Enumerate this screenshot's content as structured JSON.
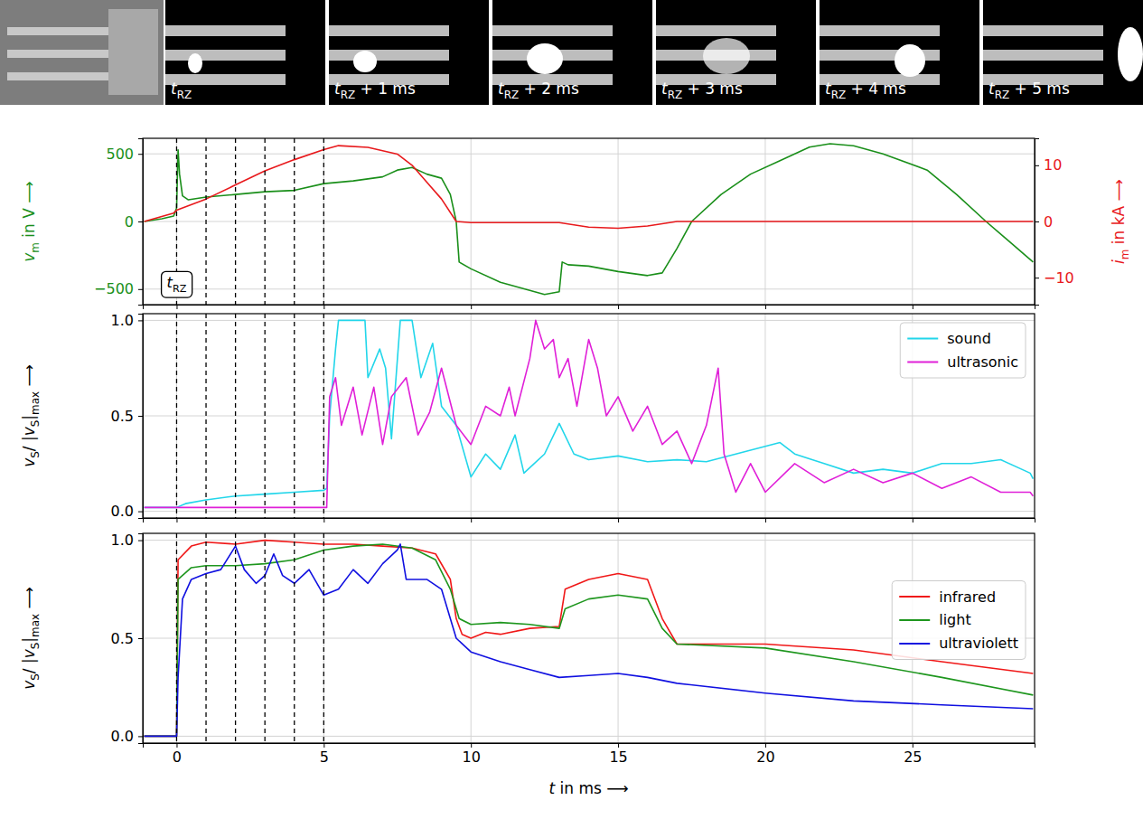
{
  "frames": {
    "labels": [
      [
        {
          "text": "t",
          "style": "italic"
        },
        {
          "text": "RZ",
          "style": "sub"
        }
      ],
      [
        {
          "text": "t",
          "style": "italic"
        },
        {
          "text": "RZ",
          "style": "sub"
        },
        {
          "text": " + 1 ms",
          "style": "normal"
        }
      ],
      [
        {
          "text": "t",
          "style": "italic"
        },
        {
          "text": "RZ",
          "style": "sub"
        },
        {
          "text": " + 2 ms",
          "style": "normal"
        }
      ],
      [
        {
          "text": "t",
          "style": "italic"
        },
        {
          "text": "RZ",
          "style": "sub"
        },
        {
          "text": " + 3 ms",
          "style": "normal"
        }
      ],
      [
        {
          "text": "t",
          "style": "italic"
        },
        {
          "text": "RZ",
          "style": "sub"
        },
        {
          "text": " + 4 ms",
          "style": "normal"
        }
      ],
      [
        {
          "text": "t",
          "style": "italic"
        },
        {
          "text": "RZ",
          "style": "sub"
        },
        {
          "text": " + 5 ms",
          "style": "normal"
        }
      ]
    ]
  },
  "chart_data": [
    {
      "type": "line",
      "xlim": [
        -1.15,
        29.15
      ],
      "xticks": [
        0,
        5,
        10,
        15,
        20,
        25
      ],
      "ylim": [
        -615,
        615
      ],
      "yticks": [
        {
          "value": -500,
          "label": "−500"
        },
        0,
        500
      ],
      "y2lim": [
        -14.8,
        14.8
      ],
      "y2ticks": [
        {
          "value": -10,
          "label": "−10"
        },
        0,
        10
      ],
      "ylabel": [
        {
          "text": "v",
          "style": "italic"
        },
        {
          "text": "m",
          "style": "sub"
        },
        {
          "text": " in V ⟶",
          "style": "normal"
        }
      ],
      "y2label": [
        {
          "text": "i",
          "style": "italic"
        },
        {
          "text": "m",
          "style": "sub"
        },
        {
          "text": " in kA ⟶",
          "style": "normal"
        }
      ],
      "grid": true,
      "tick_labels": "y",
      "vlines": [
        0,
        1,
        2,
        3,
        4,
        5
      ],
      "annotation": {
        "x": 0,
        "y": -490,
        "label": [
          {
            "text": "t",
            "style": "italic"
          },
          {
            "text": "RZ",
            "style": "sub"
          }
        ]
      },
      "series": [
        {
          "color": "#1a8f1a",
          "x": [
            -1.1,
            -0.5,
            -0.1,
            0.0,
            0.05,
            0.1,
            0.2,
            0.4,
            1,
            2,
            3,
            4,
            5,
            6,
            7,
            7.5,
            8,
            8.5,
            9,
            9.3,
            9.5,
            9.6,
            10,
            11,
            12,
            12.5,
            13,
            13.1,
            13.3,
            14,
            15,
            16,
            16.5,
            17,
            17.5,
            18.5,
            19.5,
            20.5,
            21.5,
            22.2,
            23,
            24,
            25.5,
            26.5,
            27.5,
            28.3,
            29.1
          ],
          "values": [
            0,
            20,
            40,
            100,
            530,
            350,
            190,
            160,
            180,
            200,
            220,
            230,
            280,
            300,
            330,
            380,
            400,
            350,
            320,
            200,
            0,
            -300,
            -350,
            -450,
            -510,
            -540,
            -520,
            -300,
            -320,
            -330,
            -370,
            -400,
            -380,
            -200,
            0,
            200,
            350,
            450,
            550,
            575,
            560,
            500,
            380,
            200,
            0,
            -150,
            -300
          ]
        },
        {
          "color": "#e8191c",
          "axis": "y2",
          "x": [
            -1.1,
            -0.1,
            0,
            1,
            2,
            3,
            4,
            5,
            5.5,
            6.5,
            7.5,
            8,
            8.5,
            9,
            9.5,
            10,
            13,
            14,
            15,
            16,
            17,
            29.1
          ],
          "values": [
            0,
            1.5,
            2,
            4,
            6.5,
            9,
            11,
            12.8,
            13.5,
            13.2,
            12,
            10,
            7,
            4,
            0,
            -0.2,
            -0.2,
            -1,
            -1.2,
            -0.8,
            0,
            0
          ]
        }
      ]
    },
    {
      "type": "line",
      "xlim": [
        -1.15,
        29.15
      ],
      "xticks": [
        0,
        5,
        10,
        15,
        20,
        25
      ],
      "ylim": [
        -0.035,
        1.035
      ],
      "yticks": [
        {
          "value": 0,
          "label": "0.0"
        },
        {
          "value": 0.5,
          "label": "0.5"
        },
        {
          "value": 1,
          "label": "1.0"
        }
      ],
      "ylabel": [
        {
          "text": "v",
          "style": "italic"
        },
        {
          "text": "S",
          "style": "sub"
        },
        {
          "text": "/ |",
          "style": "normal"
        },
        {
          "text": "v",
          "style": "italic"
        },
        {
          "text": "S",
          "style": "sub"
        },
        {
          "text": "|",
          "style": "normal"
        },
        {
          "text": "max",
          "style": "sub"
        },
        {
          "text": " ⟶",
          "style": "normal"
        }
      ],
      "grid": true,
      "tick_labels": "y",
      "legend": "upper right",
      "vlines": [
        0,
        1,
        2,
        3,
        4,
        5
      ],
      "series": [
        {
          "name": "sound",
          "color": "#22d6ea",
          "x": [
            -1.1,
            0,
            0.3,
            1,
            2,
            3,
            4,
            5,
            5.1,
            5.2,
            5.4,
            5.5,
            6.4,
            6.5,
            6.9,
            7.1,
            7.3,
            7.6,
            8,
            8.3,
            8.7,
            9,
            9.5,
            10,
            10.5,
            11,
            11.5,
            11.8,
            12.5,
            13,
            13.5,
            14,
            15,
            16,
            17,
            18,
            19,
            20,
            20.5,
            21,
            22,
            23,
            24,
            25,
            26,
            27,
            28,
            29,
            29.1
          ],
          "values": [
            0.02,
            0.02,
            0.04,
            0.06,
            0.08,
            0.09,
            0.1,
            0.11,
            0.12,
            0.5,
            0.85,
            1.0,
            1.0,
            0.7,
            0.85,
            0.75,
            0.38,
            1.0,
            1.0,
            0.7,
            0.88,
            0.55,
            0.45,
            0.18,
            0.3,
            0.22,
            0.4,
            0.2,
            0.3,
            0.46,
            0.3,
            0.27,
            0.29,
            0.26,
            0.27,
            0.26,
            0.3,
            0.34,
            0.36,
            0.3,
            0.25,
            0.2,
            0.22,
            0.2,
            0.25,
            0.25,
            0.27,
            0.2,
            0.17
          ]
        },
        {
          "name": "ultrasonic",
          "color": "#e020d8",
          "x": [
            -1.1,
            5.1,
            5.2,
            5.4,
            5.6,
            6,
            6.3,
            6.7,
            7,
            7.3,
            7.8,
            8.2,
            8.6,
            9,
            9.5,
            10,
            10.5,
            11,
            11.3,
            11.5,
            12,
            12.2,
            12.5,
            12.8,
            13,
            13.3,
            13.6,
            14,
            14.3,
            14.6,
            15,
            15.5,
            16,
            16.5,
            17,
            17.5,
            18,
            18.4,
            18.6,
            19,
            19.5,
            20,
            21,
            22,
            23,
            24,
            25,
            26,
            27,
            28,
            29,
            29.1
          ],
          "values": [
            0.02,
            0.02,
            0.6,
            0.7,
            0.45,
            0.65,
            0.4,
            0.65,
            0.35,
            0.6,
            0.7,
            0.4,
            0.52,
            0.75,
            0.45,
            0.35,
            0.55,
            0.5,
            0.65,
            0.5,
            0.8,
            1.0,
            0.85,
            0.9,
            0.7,
            0.8,
            0.55,
            0.9,
            0.75,
            0.5,
            0.6,
            0.42,
            0.55,
            0.35,
            0.42,
            0.25,
            0.45,
            0.75,
            0.3,
            0.1,
            0.25,
            0.1,
            0.25,
            0.15,
            0.22,
            0.15,
            0.2,
            0.12,
            0.18,
            0.1,
            0.1,
            0.08
          ]
        }
      ]
    },
    {
      "type": "line",
      "xlim": [
        -1.15,
        29.15
      ],
      "xticks": [
        0,
        5,
        10,
        15,
        20,
        25
      ],
      "ylim": [
        -0.035,
        1.035
      ],
      "yticks": [
        {
          "value": 0,
          "label": "0.0"
        },
        {
          "value": 0.5,
          "label": "0.5"
        },
        {
          "value": 1,
          "label": "1.0"
        }
      ],
      "xlabel": [
        {
          "text": "t",
          "style": "italic"
        },
        {
          "text": " in ms ⟶",
          "style": "normal"
        }
      ],
      "ylabel": [
        {
          "text": "v",
          "style": "italic"
        },
        {
          "text": "S",
          "style": "sub"
        },
        {
          "text": "/ |",
          "style": "normal"
        },
        {
          "text": "v",
          "style": "italic"
        },
        {
          "text": "S",
          "style": "sub"
        },
        {
          "text": "|",
          "style": "normal"
        },
        {
          "text": "max",
          "style": "sub"
        },
        {
          "text": " ⟶",
          "style": "normal"
        }
      ],
      "grid": true,
      "legend": "center right",
      "vlines": [
        0,
        1,
        2,
        3,
        4,
        5
      ],
      "series": [
        {
          "name": "infrared",
          "color": "#f01818",
          "x": [
            -1.1,
            0,
            0.05,
            0.5,
            1,
            2,
            3,
            4,
            5,
            6,
            7,
            8,
            8.8,
            9.3,
            9.5,
            9.7,
            10,
            10.5,
            11,
            12,
            13,
            13.2,
            14,
            15,
            16,
            16.5,
            17,
            20,
            23,
            26,
            29.1
          ],
          "values": [
            0,
            0,
            0.9,
            0.97,
            0.99,
            0.98,
            1.0,
            0.99,
            0.98,
            0.98,
            0.97,
            0.96,
            0.93,
            0.8,
            0.6,
            0.52,
            0.5,
            0.53,
            0.52,
            0.55,
            0.56,
            0.75,
            0.8,
            0.83,
            0.8,
            0.6,
            0.47,
            0.47,
            0.44,
            0.38,
            0.32
          ]
        },
        {
          "name": "light",
          "color": "#1e961e",
          "x": [
            -1.1,
            0,
            0.05,
            0.5,
            1,
            2,
            3,
            4,
            5,
            6,
            7,
            8,
            8.8,
            9.3,
            9.6,
            10,
            11,
            12,
            13,
            13.2,
            14,
            15,
            16,
            16.5,
            17,
            20,
            23,
            26,
            29.1
          ],
          "values": [
            0,
            0,
            0.8,
            0.86,
            0.87,
            0.87,
            0.88,
            0.9,
            0.95,
            0.97,
            0.98,
            0.96,
            0.9,
            0.75,
            0.6,
            0.57,
            0.58,
            0.57,
            0.55,
            0.65,
            0.7,
            0.72,
            0.7,
            0.55,
            0.47,
            0.45,
            0.38,
            0.3,
            0.21
          ]
        },
        {
          "name": "ultraviolett",
          "color": "#1010e0",
          "x": [
            -1.1,
            0,
            0.05,
            0.2,
            0.5,
            1,
            1.5,
            2,
            2.3,
            2.7,
            3,
            3.3,
            3.6,
            4,
            4.5,
            5,
            5.5,
            6,
            6.5,
            7,
            7.5,
            7.6,
            7.8,
            8.5,
            9,
            9.5,
            10,
            11,
            12,
            13,
            14,
            15,
            16,
            17,
            20,
            23,
            26,
            29.1
          ],
          "values": [
            0,
            0,
            0.3,
            0.7,
            0.8,
            0.83,
            0.85,
            0.97,
            0.85,
            0.78,
            0.82,
            0.93,
            0.82,
            0.78,
            0.85,
            0.72,
            0.75,
            0.85,
            0.78,
            0.88,
            0.95,
            0.98,
            0.8,
            0.8,
            0.75,
            0.5,
            0.43,
            0.38,
            0.34,
            0.3,
            0.31,
            0.32,
            0.3,
            0.27,
            0.22,
            0.18,
            0.16,
            0.14
          ]
        }
      ]
    }
  ]
}
